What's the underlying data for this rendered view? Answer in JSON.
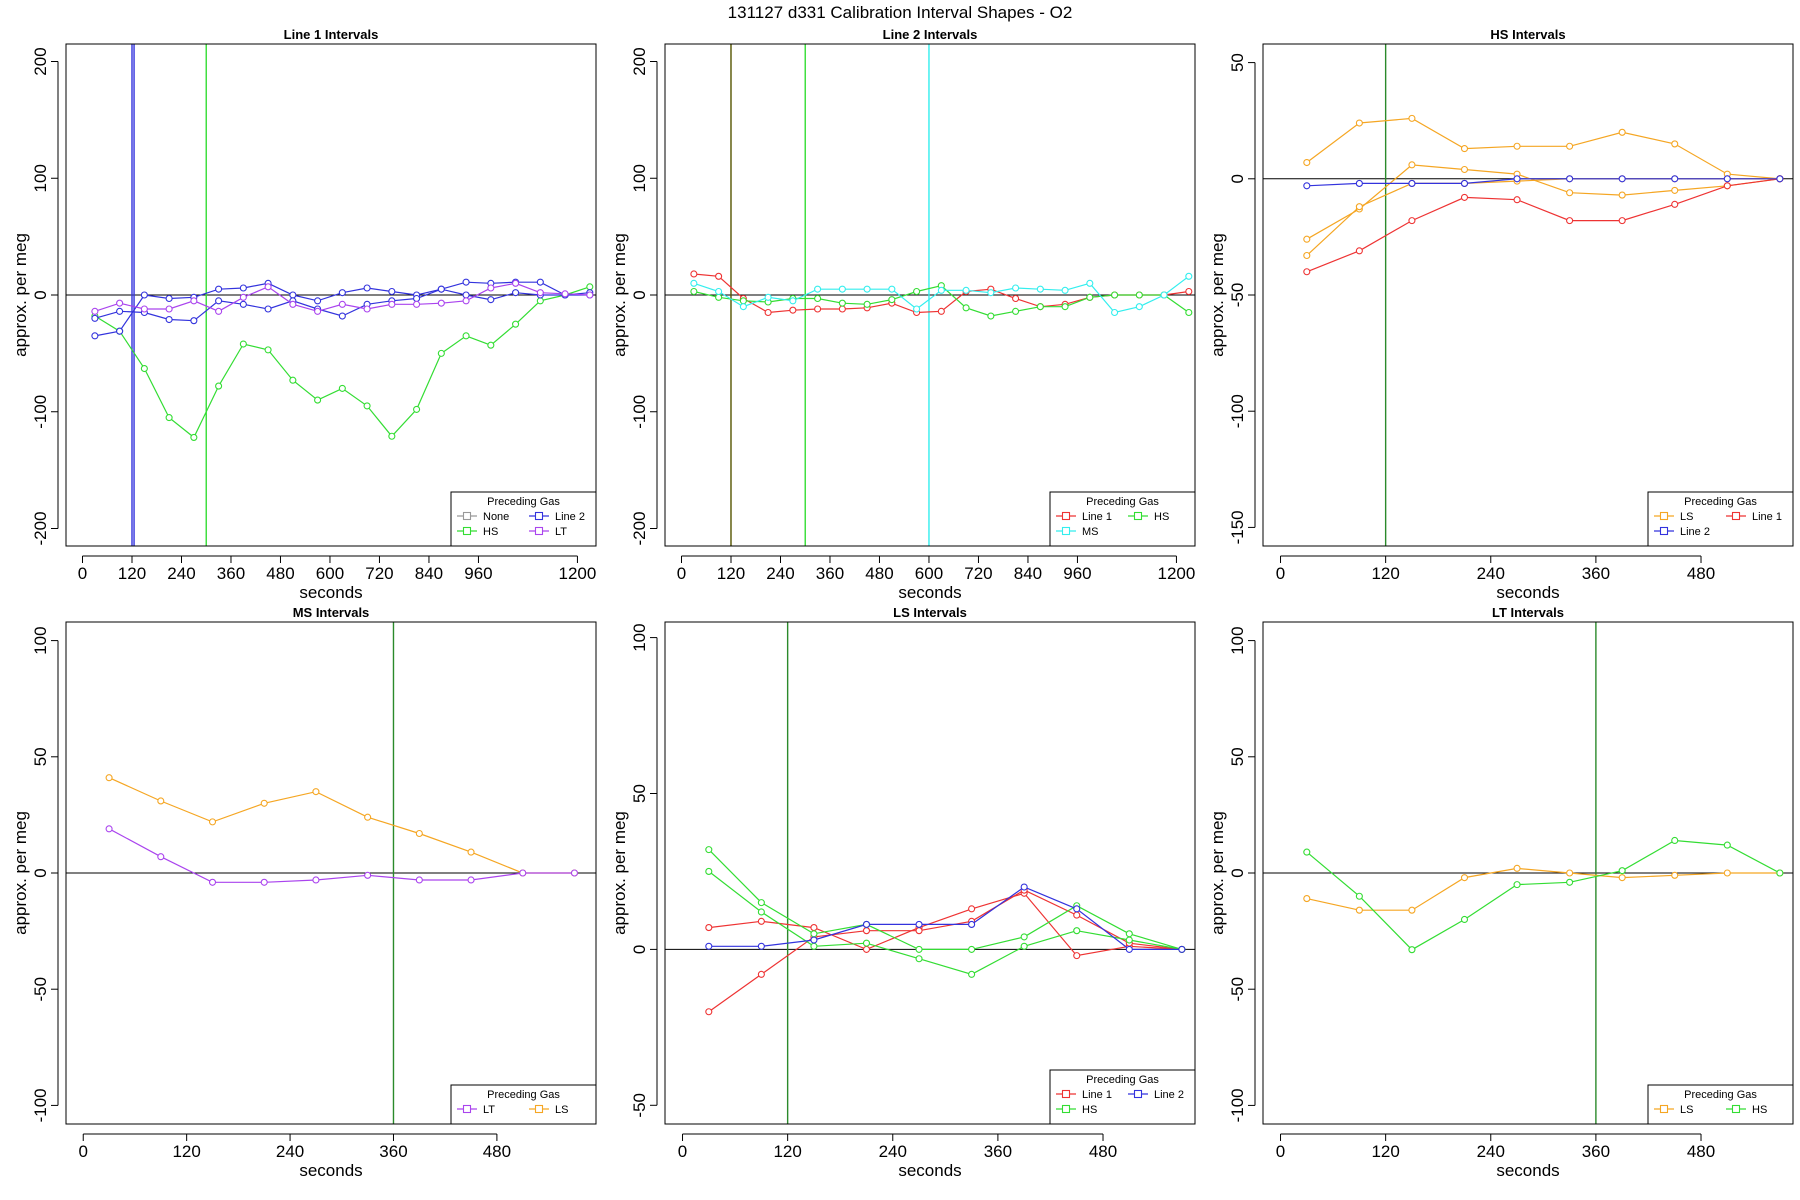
{
  "figure": {
    "title": "131127   d331   Calibration Interval Shapes - O2"
  },
  "colors": {
    "None": "#999999",
    "Line 1": "#ee3333",
    "Line 2": "#3333dd",
    "HS": "#33dd33",
    "MS": "#33eeee",
    "LS": "#f5a623",
    "LT": "#aa44ee",
    "zero": "#000000",
    "dark-green": "#2b8a2b",
    "dark-olive": "#555500"
  },
  "chart_data": [
    {
      "id": "p1",
      "type": "line",
      "title": "Line 1 Intervals",
      "xlabel": "seconds",
      "ylabel": "approx. per meg",
      "xlim": [
        -40,
        1245
      ],
      "ylim": [
        -215,
        215
      ],
      "xticks": [
        0,
        120,
        240,
        360,
        480,
        600,
        720,
        840,
        960,
        1200
      ],
      "yticks": [
        -200,
        -100,
        0,
        100,
        200
      ],
      "hlines": [
        0
      ],
      "vlines": [
        {
          "x": 120,
          "color": "Line 2"
        },
        {
          "x": 125,
          "color": "Line 2"
        },
        {
          "x": 300,
          "color": "HS"
        }
      ],
      "legend": {
        "title": "Preceding Gas",
        "position": "bottom-right",
        "rows": [
          [
            "None",
            "Line 2"
          ],
          [
            "HS",
            "LT"
          ]
        ]
      },
      "series": [
        {
          "name": "HS",
          "x": [
            30,
            90,
            150,
            210,
            270,
            330,
            390,
            450,
            510,
            570,
            630,
            690,
            750,
            810,
            870,
            930,
            990,
            1050,
            1110,
            1170,
            1230
          ],
          "y": [
            -18,
            -31,
            -63,
            -105,
            -122,
            -78,
            -42,
            -47,
            -73,
            -90,
            -80,
            -95,
            -121,
            -98,
            -50,
            -35,
            -43,
            -25,
            -5,
            0,
            7
          ]
        },
        {
          "name": "Line 2",
          "x": [
            30,
            90,
            150,
            210,
            270,
            330,
            390,
            450,
            510,
            570,
            630,
            690,
            750,
            810,
            870,
            930,
            990,
            1050,
            1110,
            1170,
            1230
          ],
          "y": [
            -35,
            -31,
            0,
            -3,
            -2,
            5,
            6,
            10,
            0,
            -5,
            2,
            6,
            3,
            0,
            5,
            11,
            10,
            11,
            11,
            0,
            2
          ]
        },
        {
          "name": "Line 2",
          "x": [
            30,
            90,
            150,
            210,
            270,
            330,
            390,
            450,
            510,
            570,
            630,
            690,
            750,
            810,
            870,
            930,
            990,
            1050,
            1110,
            1170,
            1230
          ],
          "y": [
            -20,
            -14,
            -15,
            -21,
            -22,
            -5,
            -8,
            -12,
            -5,
            -12,
            -18,
            -8,
            -5,
            -3,
            5,
            0,
            -4,
            2,
            0,
            0,
            0
          ]
        },
        {
          "name": "LT",
          "x": [
            30,
            90,
            150,
            210,
            270,
            330,
            390,
            450,
            510,
            570,
            630,
            690,
            750,
            810,
            870,
            930,
            990,
            1050,
            1110,
            1170,
            1230
          ],
          "y": [
            -14,
            -7,
            -12,
            -12,
            -5,
            -14,
            -2,
            7,
            -8,
            -14,
            -8,
            -12,
            -8,
            -8,
            -7,
            -5,
            6,
            10,
            2,
            1,
            0
          ]
        }
      ]
    },
    {
      "id": "p2",
      "type": "line",
      "title": "Line 2 Intervals",
      "xlabel": "seconds",
      "ylabel": "approx. per meg",
      "xlim": [
        -40,
        1245
      ],
      "ylim": [
        -215,
        215
      ],
      "xticks": [
        0,
        120,
        240,
        360,
        480,
        600,
        720,
        840,
        960,
        1200
      ],
      "yticks": [
        -200,
        -100,
        0,
        100,
        200
      ],
      "hlines": [
        0
      ],
      "vlines": [
        {
          "x": 120,
          "color": "dark-olive"
        },
        {
          "x": 300,
          "color": "HS"
        },
        {
          "x": 600,
          "color": "MS"
        }
      ],
      "legend": {
        "title": "Preceding Gas",
        "position": "bottom-right",
        "rows": [
          [
            "Line 1",
            "HS"
          ],
          [
            "MS"
          ]
        ]
      },
      "series": [
        {
          "name": "Line 1",
          "x": [
            30,
            90,
            150,
            210,
            270,
            330,
            390,
            450,
            510,
            570,
            630,
            690,
            750,
            810,
            870,
            930,
            990,
            1050,
            1110,
            1170,
            1230
          ],
          "y": [
            18,
            16,
            -3,
            -15,
            -13,
            -12,
            -12,
            -11,
            -7,
            -15,
            -14,
            3,
            5,
            -3,
            -10,
            -8,
            -2,
            0,
            0,
            0,
            3
          ]
        },
        {
          "name": "HS",
          "x": [
            30,
            90,
            150,
            210,
            270,
            330,
            390,
            450,
            510,
            570,
            630,
            690,
            750,
            810,
            870,
            930,
            990,
            1050,
            1110,
            1170,
            1230
          ],
          "y": [
            3,
            -2,
            -5,
            -6,
            -3,
            -3,
            -7,
            -8,
            -4,
            3,
            8,
            -11,
            -18,
            -14,
            -10,
            -10,
            -2,
            0,
            0,
            0,
            -15
          ]
        },
        {
          "name": "MS",
          "x": [
            30,
            90,
            150,
            210,
            270,
            330,
            390,
            450,
            510,
            570,
            630,
            690,
            750,
            810,
            870,
            930,
            990,
            1050,
            1110,
            1170,
            1230
          ],
          "y": [
            10,
            3,
            -10,
            -2,
            -5,
            5,
            5,
            5,
            5,
            -12,
            4,
            4,
            2,
            6,
            5,
            4,
            10,
            -15,
            -10,
            0,
            16
          ]
        }
      ]
    },
    {
      "id": "p3",
      "type": "line",
      "title": "HS Intervals",
      "xlabel": "seconds",
      "ylabel": "approx. per meg",
      "xlim": [
        -20,
        585
      ],
      "ylim": [
        -158,
        58
      ],
      "xticks": [
        0,
        120,
        240,
        360,
        480
      ],
      "yticks": [
        -150,
        -100,
        -50,
        0,
        50
      ],
      "hlines": [
        0
      ],
      "vlines": [
        {
          "x": 120,
          "color": "dark-green"
        }
      ],
      "legend": {
        "title": "Preceding Gas",
        "position": "bottom-right",
        "rows": [
          [
            "LS",
            "Line 1"
          ],
          [
            "Line 2"
          ]
        ]
      },
      "series": [
        {
          "name": "LS",
          "x": [
            30,
            90,
            150,
            210,
            270,
            330,
            390,
            450,
            510,
            570
          ],
          "y": [
            7,
            24,
            26,
            13,
            14,
            14,
            20,
            15,
            2,
            0
          ]
        },
        {
          "name": "LS",
          "x": [
            30,
            90,
            150,
            210,
            270,
            330,
            390,
            450,
            510,
            570
          ],
          "y": [
            -26,
            -13,
            6,
            4,
            2,
            -6,
            -7,
            -5,
            -3,
            0
          ]
        },
        {
          "name": "LS",
          "x": [
            30,
            90,
            150,
            210,
            270,
            330,
            390,
            450,
            510,
            570
          ],
          "y": [
            -33,
            -12,
            -2,
            -2,
            -1,
            0,
            0,
            0,
            0,
            0
          ]
        },
        {
          "name": "Line 1",
          "x": [
            30,
            90,
            150,
            210,
            270,
            330,
            390,
            450,
            510,
            570
          ],
          "y": [
            -40,
            -31,
            -18,
            -8,
            -9,
            -18,
            -18,
            -11,
            -3,
            0
          ]
        },
        {
          "name": "Line 2",
          "x": [
            30,
            90,
            150,
            210,
            270,
            330,
            390,
            450,
            510,
            570
          ],
          "y": [
            -3,
            -2,
            -2,
            -2,
            0,
            0,
            0,
            0,
            0,
            0
          ]
        }
      ]
    },
    {
      "id": "p4",
      "type": "line",
      "title": "MS Intervals",
      "xlabel": "seconds",
      "ylabel": "approx. per meg",
      "xlim": [
        -20,
        595
      ],
      "ylim": [
        -108,
        108
      ],
      "xticks": [
        0,
        120,
        240,
        360,
        480
      ],
      "yticks": [
        -100,
        -50,
        0,
        50,
        100
      ],
      "hlines": [
        0
      ],
      "vlines": [
        {
          "x": 360,
          "color": "dark-green"
        }
      ],
      "legend": {
        "title": "Preceding Gas",
        "position": "bottom-right",
        "rows": [
          [
            "LT",
            "LS"
          ]
        ]
      },
      "series": [
        {
          "name": "LS",
          "x": [
            30,
            90,
            150,
            210,
            270,
            330,
            390,
            450,
            510,
            570
          ],
          "y": [
            41,
            31,
            22,
            30,
            35,
            24,
            17,
            9,
            0,
            0
          ]
        },
        {
          "name": "LT",
          "x": [
            30,
            90,
            150,
            210,
            270,
            330,
            390,
            450,
            510,
            570
          ],
          "y": [
            19,
            7,
            -4,
            -4,
            -3,
            -1,
            -3,
            -3,
            0,
            0
          ]
        }
      ]
    },
    {
      "id": "p5",
      "type": "line",
      "title": "LS Intervals",
      "xlabel": "seconds",
      "ylabel": "approx. per meg",
      "xlim": [
        -20,
        585
      ],
      "ylim": [
        -56,
        105
      ],
      "xticks": [
        0,
        120,
        240,
        360,
        480
      ],
      "yticks": [
        -50,
        0,
        50,
        100
      ],
      "hlines": [
        0
      ],
      "vlines": [
        {
          "x": 120,
          "color": "dark-green"
        }
      ],
      "legend": {
        "title": "Preceding Gas",
        "position": "bottom-right",
        "rows": [
          [
            "Line 1",
            "Line 2"
          ],
          [
            "HS"
          ]
        ]
      },
      "series": [
        {
          "name": "Line 1",
          "x": [
            30,
            90,
            150,
            210,
            270,
            330,
            390,
            450,
            510,
            570
          ],
          "y": [
            7,
            9,
            7,
            0,
            7,
            13,
            18,
            -2,
            1,
            0
          ]
        },
        {
          "name": "Line 1",
          "x": [
            30,
            90,
            150,
            210,
            270,
            330,
            390,
            450,
            510,
            570
          ],
          "y": [
            -20,
            -8,
            4,
            6,
            6,
            9,
            19,
            11,
            2,
            0
          ]
        },
        {
          "name": "HS",
          "x": [
            30,
            90,
            150,
            210,
            270,
            330,
            390,
            450,
            510,
            570
          ],
          "y": [
            32,
            15,
            5,
            8,
            0,
            0,
            4,
            14,
            5,
            0
          ]
        },
        {
          "name": "HS",
          "x": [
            30,
            90,
            150,
            210,
            270,
            330,
            390,
            450,
            510,
            570
          ],
          "y": [
            25,
            12,
            1,
            2,
            -3,
            -8,
            1,
            6,
            3,
            0
          ]
        },
        {
          "name": "Line 2",
          "x": [
            30,
            90,
            150,
            210,
            270,
            330,
            390,
            450,
            510,
            570
          ],
          "y": [
            1,
            1,
            3,
            8,
            8,
            8,
            20,
            13,
            0,
            0
          ]
        }
      ]
    },
    {
      "id": "p6",
      "type": "line",
      "title": "LT Intervals",
      "xlabel": "seconds",
      "ylabel": "approx. per meg",
      "xlim": [
        -20,
        585
      ],
      "ylim": [
        -108,
        108
      ],
      "xticks": [
        0,
        120,
        240,
        360,
        480
      ],
      "yticks": [
        -100,
        -50,
        0,
        50,
        100
      ],
      "hlines": [
        0
      ],
      "vlines": [
        {
          "x": 360,
          "color": "dark-green"
        }
      ],
      "legend": {
        "title": "Preceding Gas",
        "position": "bottom-right",
        "rows": [
          [
            "LS",
            "HS"
          ]
        ]
      },
      "series": [
        {
          "name": "LS",
          "x": [
            30,
            90,
            150,
            210,
            270,
            330,
            390,
            450,
            510,
            570
          ],
          "y": [
            -11,
            -16,
            -16,
            -2,
            2,
            0,
            -2,
            -1,
            0,
            0
          ]
        },
        {
          "name": "HS",
          "x": [
            30,
            90,
            150,
            210,
            270,
            330,
            390,
            450,
            510,
            570
          ],
          "y": [
            9,
            -10,
            -33,
            -20,
            -5,
            -4,
            1,
            14,
            12,
            0
          ]
        }
      ]
    }
  ]
}
